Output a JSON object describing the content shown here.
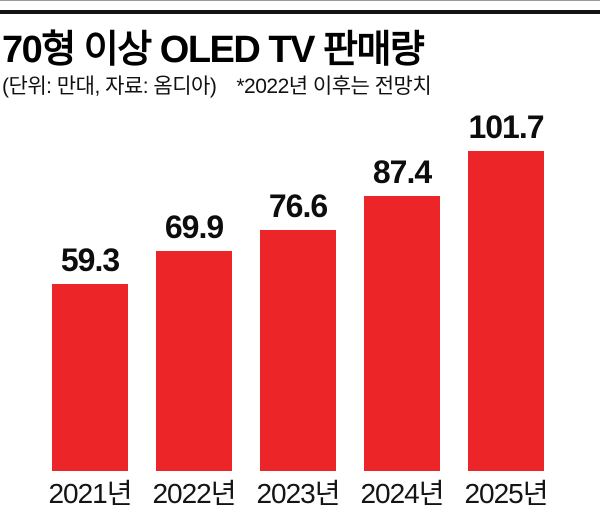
{
  "header": {
    "title": "70형 이상 OLED TV 판매량",
    "unit_source": "(단위: 만대, 자료: 옴디아)",
    "footnote": "*2022년 이후는 전망치"
  },
  "chart_data": {
    "type": "bar",
    "title": "70형 이상 OLED TV 판매량",
    "subtitle": "(단위: 만대, 자료: 옴디아)",
    "annotation": "*2022년 이후는 전망치",
    "categories": [
      "2021년",
      "2022년",
      "2023년",
      "2024년",
      "2025년"
    ],
    "values": [
      59.3,
      69.9,
      76.6,
      87.4,
      101.7
    ],
    "value_labels": [
      "59.3",
      "69.9",
      "76.6",
      "87.4",
      "101.7"
    ],
    "bar_color": "#ec2528",
    "text_color": "#0d0d0d",
    "ylim": [
      0,
      101.7
    ],
    "grid": false,
    "legend": false,
    "xlabel": "",
    "ylabel": ""
  }
}
